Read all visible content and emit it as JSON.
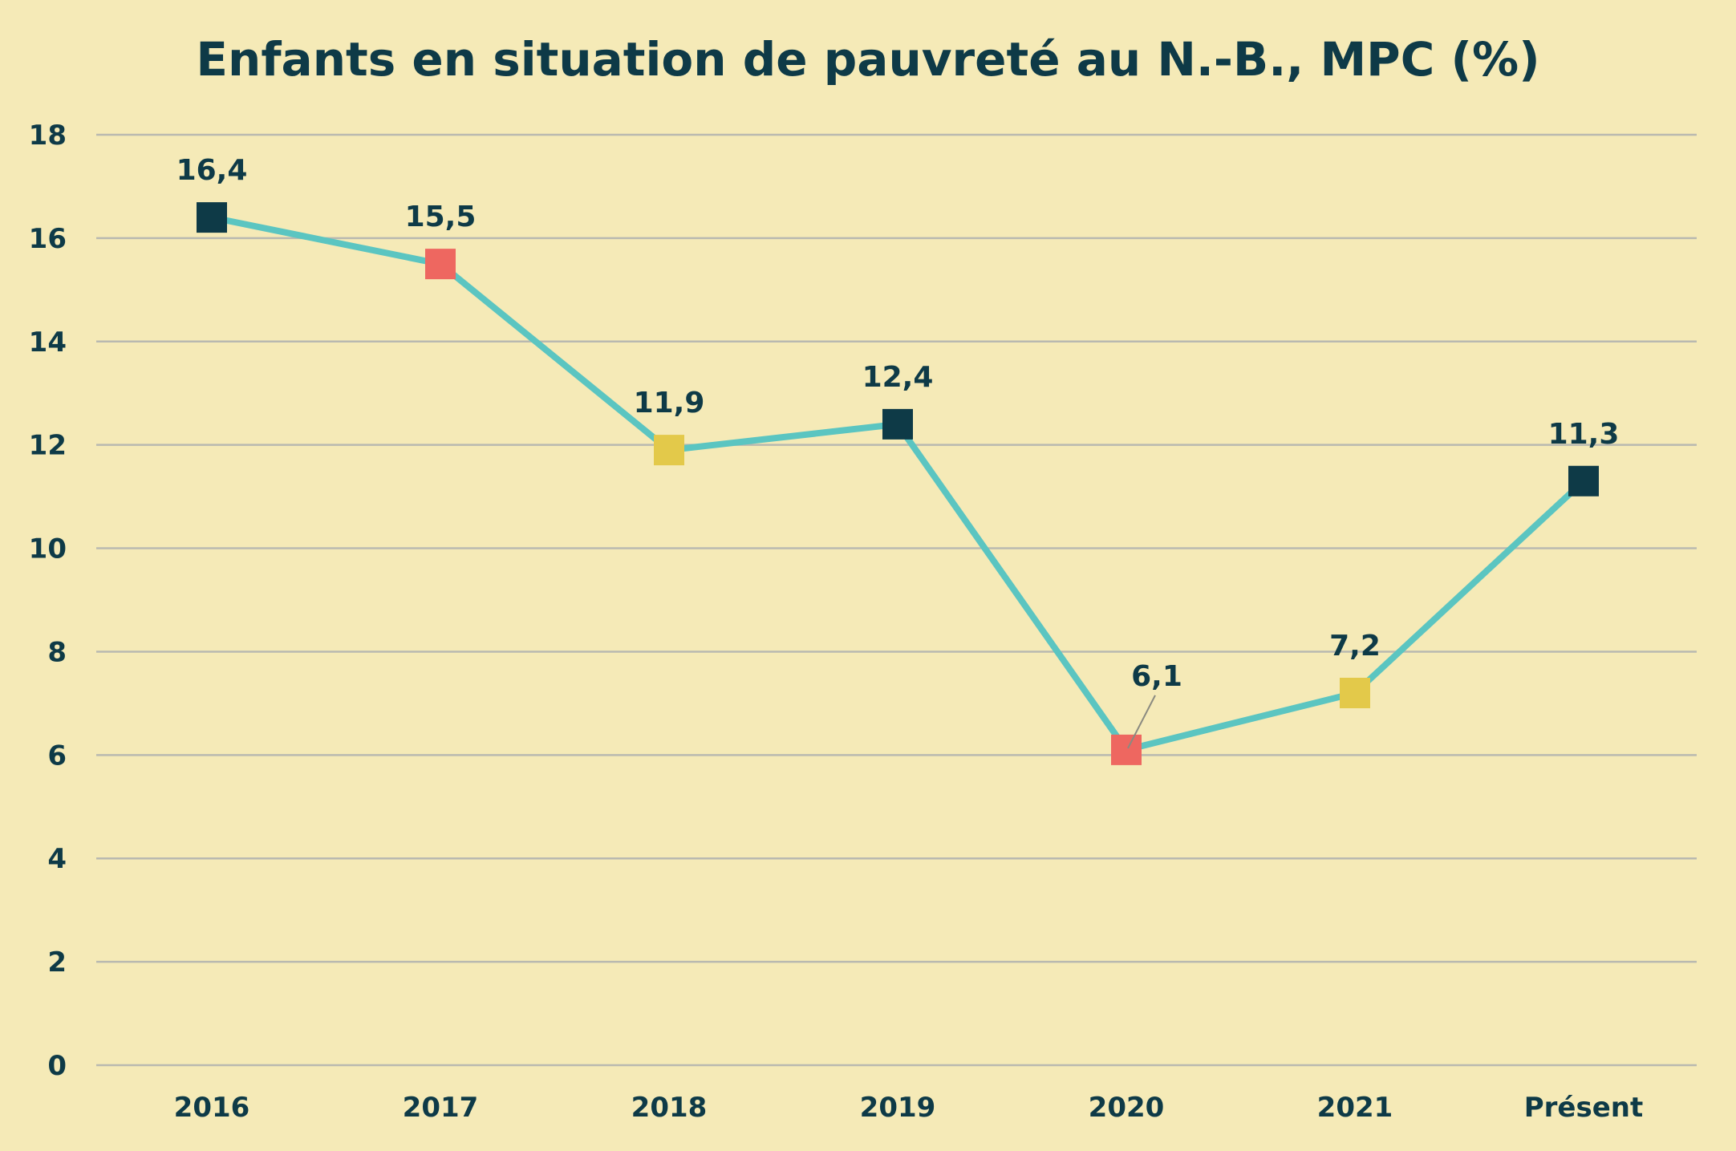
{
  "chart_data": {
    "type": "line",
    "title": "Enfants en situation de pauvreté au N.-B., MPC (%)",
    "xlabel": "",
    "ylabel": "",
    "categories": [
      "2016",
      "2017",
      "2018",
      "2019",
      "2020",
      "2021",
      "Présent"
    ],
    "series": [
      {
        "name": "Enfants en situation de pauvreté (%)",
        "values": [
          16.4,
          15.5,
          11.9,
          12.4,
          6.1,
          7.2,
          11.3
        ],
        "labels": [
          "16,4",
          "15,5",
          "11,9",
          "12,4",
          "6,1",
          "7,2",
          "11,3"
        ],
        "line_color": "#5bc5c1",
        "marker_colors": [
          "#0e3a47",
          "#ee6760",
          "#e3c94a",
          "#0e3a47",
          "#ee6760",
          "#e3c94a",
          "#0e3a47"
        ]
      }
    ],
    "ylim": [
      0,
      18
    ],
    "yticks": [
      0,
      2,
      4,
      6,
      8,
      10,
      12,
      14,
      16,
      18
    ],
    "grid": true,
    "legend": "none"
  },
  "colors": {
    "background": "#f5eab7",
    "text": "#0e3a47",
    "grid": "#b9b9b0",
    "leader_line": "#8a8a80"
  }
}
